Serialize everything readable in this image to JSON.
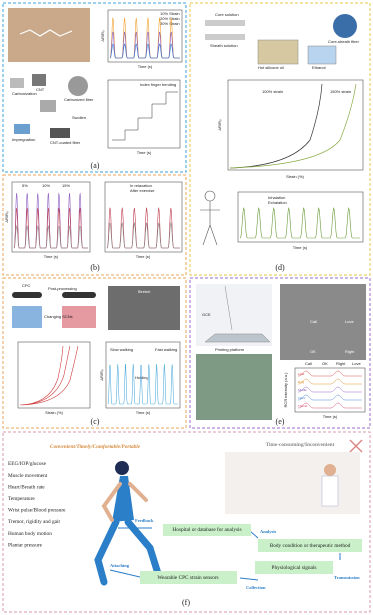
{
  "panels": {
    "a": {
      "label": "(a)",
      "legend": [
        "10% Strain",
        "20% Strain",
        "30% Strain"
      ],
      "x_label": "Time (s)",
      "y_label": "ΔR/R₀",
      "steps": [
        "Carbonization",
        "CNT",
        "Carbonized fiber",
        "Swollen",
        "Impregnation",
        "CNT-coated fiber"
      ],
      "inset": "Index finger bending",
      "inset_x_label": "Time (s)"
    },
    "b": {
      "label": "(b)",
      "legend_left": [
        "5%",
        "10%",
        "15%"
      ],
      "legend_right": [
        "In relaxation",
        "After exercise"
      ],
      "x_label": "Time (s)",
      "y_label": "ΔR/R₀"
    },
    "c": {
      "label": "(c)",
      "texts": [
        "CPC",
        "Post-processing",
        "Changing SCNs",
        "Stretch"
      ],
      "x_label_left": "Strain (%)",
      "x_label_right": "Time (s)",
      "walk": [
        "Slow walking",
        "Holding",
        "Fast walking"
      ],
      "y_label": "ΔR/R₀"
    },
    "d": {
      "label": "(d)",
      "texts": [
        "Core solution",
        "Sheath solution",
        "Hot silicone oil",
        "Ethanol",
        "Core-sheath fiber"
      ],
      "curves": [
        "100% strain",
        "150% strain"
      ],
      "x_label": "Strain (%)",
      "breath": [
        "Inhalation",
        "Exhalation"
      ],
      "x_label_bottom": "Time (s)",
      "y_label": "ΔR/R₀"
    },
    "e": {
      "label": "(e)",
      "texts": [
        "GCE",
        "Printing platform"
      ],
      "gestures": [
        "Call",
        "Love",
        "OK",
        "Right"
      ],
      "fingers": [
        "Little",
        "Ring",
        "Middle",
        "Index",
        "Thumb"
      ],
      "x_label": "Time (s)",
      "y_label": "RCR intensity (a.u.)"
    },
    "f": {
      "label": "(f)",
      "left_title": "Convenient/Timely/Comfortable/Portable",
      "right_title": "Time-consuming/Inconvenient",
      "items": [
        "EEG/IOP/glucose",
        "Muscle movement",
        "Heart/Breath rate",
        "Temperature",
        "Wrist pulse/Blood pressure",
        "Tremor, rigidity and gait",
        "Human body motion",
        "Plantar pressure"
      ],
      "boxes": [
        "Hospital or database for analysis",
        "Body condition or therapeutic method",
        "Physiological signals",
        "Wearable CPC strain sensors"
      ],
      "arrows": [
        "Feedback",
        "Analysis",
        "Transmission",
        "Collection",
        "Attaching"
      ]
    }
  }
}
